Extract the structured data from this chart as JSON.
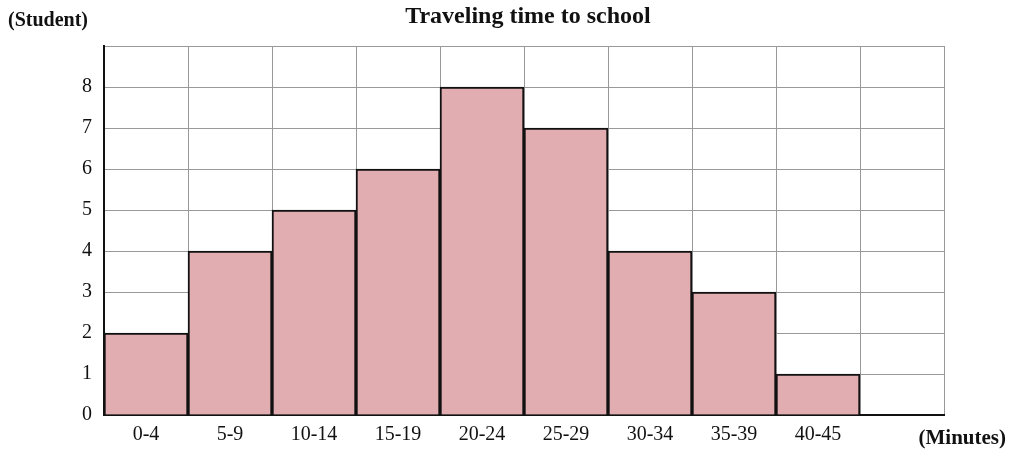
{
  "chart_data": {
    "type": "bar",
    "title": "Traveling time to school",
    "xlabel": "(Minutes)",
    "ylabel": "(Student)",
    "categories": [
      "0-4",
      "5-9",
      "10-14",
      "15-19",
      "20-24",
      "25-29",
      "30-34",
      "35-39",
      "40-45",
      null
    ],
    "values": [
      2,
      4,
      5,
      6,
      8,
      7,
      4,
      3,
      1,
      null
    ],
    "color": "#e2adb0",
    "ylim": [
      0,
      9
    ],
    "yticks": [
      0,
      1,
      2,
      3,
      4,
      5,
      6,
      7,
      8,
      {
        "value": 9,
        "label": null
      }
    ],
    "grid": true,
    "legend": false
  }
}
